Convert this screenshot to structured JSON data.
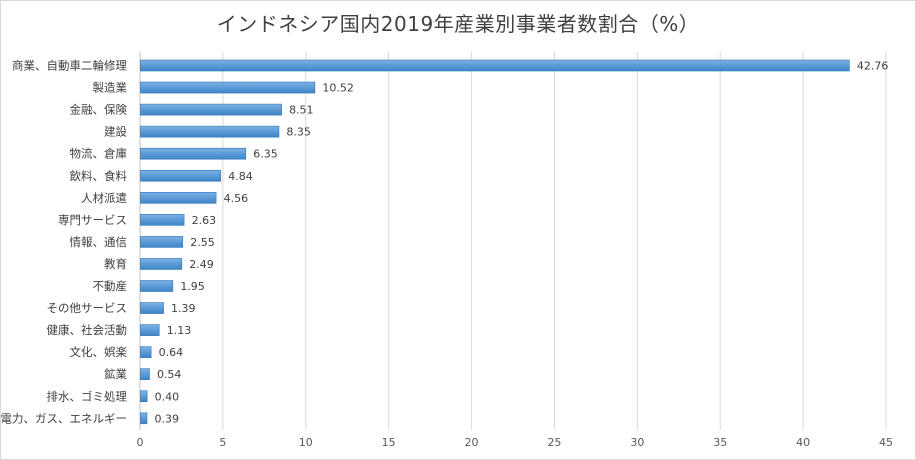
{
  "chart_data": {
    "type": "bar",
    "orientation": "horizontal",
    "title": "インドネシア国内2019年産業別事業者数割合（%）",
    "categories": [
      "商業、自動車二輪修理",
      "製造業",
      "金融、保険",
      "建設",
      "物流、倉庫",
      "飲料、食料",
      "人材派遣",
      "専門サービス",
      "情報、通信",
      "教育",
      "不動産",
      "その他サービス",
      "健康、社会活動",
      "文化、娯楽",
      "鉱業",
      "排水、ゴミ処理",
      "電力、ガス、エネルギー"
    ],
    "values": [
      42.76,
      10.52,
      8.51,
      8.35,
      6.35,
      4.84,
      4.56,
      2.63,
      2.55,
      2.49,
      1.95,
      1.39,
      1.13,
      0.64,
      0.54,
      0.4,
      0.39
    ],
    "value_labels": [
      "42.76",
      "10.52",
      "8.51",
      "8.35",
      "6.35",
      "4.84",
      "4.56",
      "2.63",
      "2.55",
      "2.49",
      "1.95",
      "1.39",
      "1.13",
      "0.64",
      "0.54",
      "0.40",
      "0.39"
    ],
    "xlim": [
      0,
      45
    ],
    "x_ticks": [
      "0",
      "5",
      "10",
      "15",
      "20",
      "25",
      "30",
      "35",
      "40",
      "45"
    ],
    "xlabel": "",
    "ylabel": "",
    "grid": "vertical",
    "legend": "none",
    "bar_color": "#5b9bd5",
    "bar_edge_color": "#2e75b6"
  }
}
